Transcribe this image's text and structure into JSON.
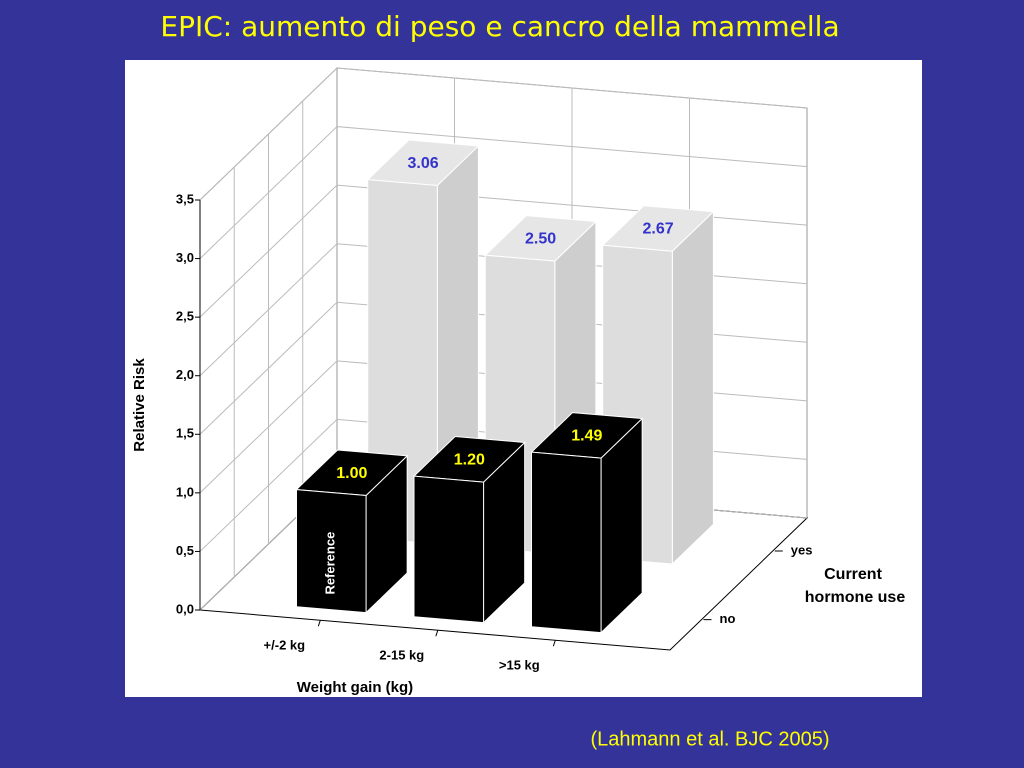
{
  "chart_data": {
    "type": "bar3d",
    "title": "EPIC: aumento di peso e cancro della mammella",
    "y_label": "Relative Risk",
    "x_label": "Weight gain (kg)",
    "z_label": [
      "Current",
      "hormone use"
    ],
    "annotations": [
      "Reference"
    ],
    "citation": "(Lahmann et al. BJC 2005)",
    "categories": [
      "+/-2 kg",
      "2-15 kg",
      ">15 kg"
    ],
    "series": [
      {
        "name": "no",
        "color": "#000000",
        "label_color": "#ffff00",
        "values": [
          1.0,
          1.2,
          1.49
        ],
        "value_labels": [
          "1.00",
          "1.20",
          "1.49"
        ]
      },
      {
        "name": "yes",
        "color": "#dddddd",
        "label_color": "#3333cc",
        "values": [
          3.06,
          2.5,
          2.67
        ],
        "value_labels": [
          "3.06",
          "2.50",
          "2.67"
        ]
      }
    ],
    "ylim": [
      0,
      3.5
    ],
    "yticks": [
      {
        "value": 0,
        "label": "0,0"
      },
      {
        "value": 0.5,
        "label": "0,5"
      },
      {
        "value": 1,
        "label": "1,0"
      },
      {
        "value": 1.5,
        "label": "1,5"
      },
      {
        "value": 2,
        "label": "2,0"
      },
      {
        "value": 2.5,
        "label": "2,5"
      },
      {
        "value": 3,
        "label": "3,0"
      },
      {
        "value": 3.5,
        "label": "3,5"
      }
    ],
    "grid": true
  }
}
